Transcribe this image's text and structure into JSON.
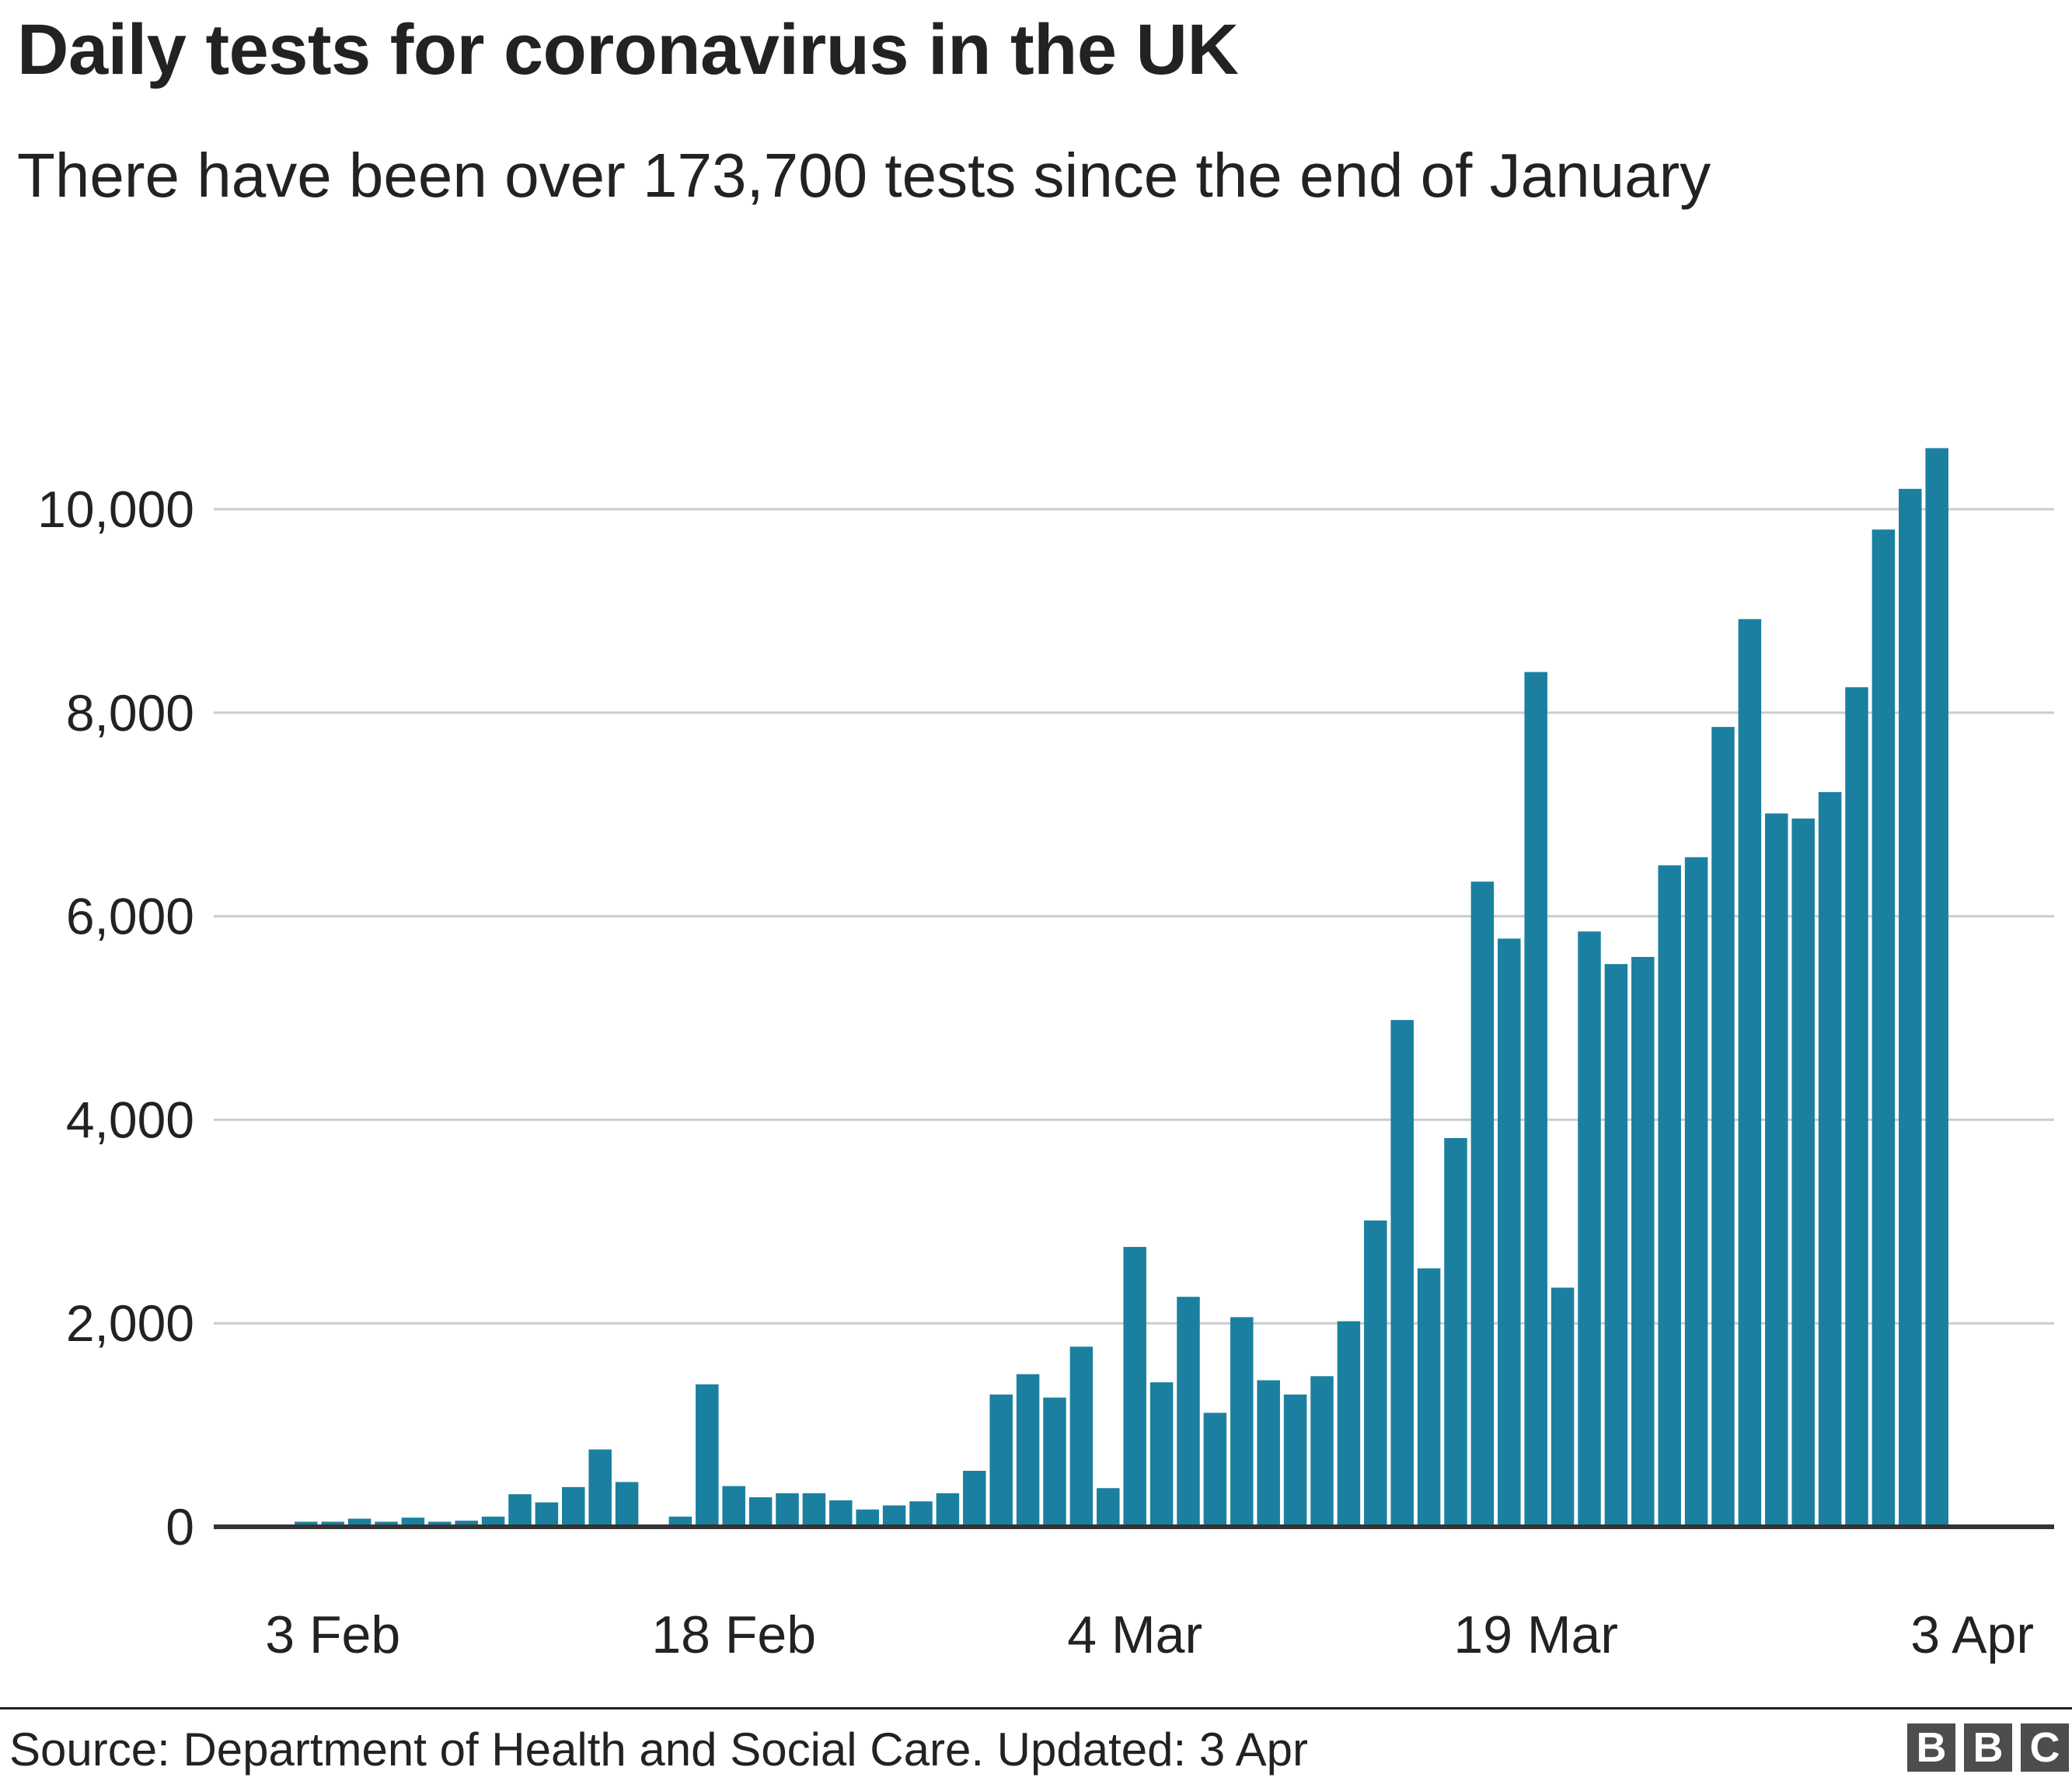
{
  "header": {
    "title": "Daily tests for coronavirus in the UK",
    "subtitle": "There have been over 173,700 tests since the end of January"
  },
  "footer": {
    "source": "Source: Department of Health and Social Care. Updated: 3 Apr",
    "logo_letters": [
      "B",
      "B",
      "C"
    ]
  },
  "colors": {
    "bar": "#1b80a0",
    "grid": "#cccccc",
    "baseline": "#333333",
    "text": "#222222",
    "logo_block": "#4d4d4d"
  },
  "chart_data": {
    "type": "bar",
    "title": "Daily tests for coronavirus in the UK",
    "subtitle": "There have been over 173,700 tests since the end of January",
    "xlabel": "",
    "ylabel": "",
    "ylim": [
      0,
      11000
    ],
    "y_ticks": [
      0,
      2000,
      4000,
      6000,
      8000,
      10000
    ],
    "y_tick_labels": [
      "0",
      "2,000",
      "4,000",
      "6,000",
      "8,000",
      "10,000"
    ],
    "x_tick_labels": [
      "3 Feb",
      "18 Feb",
      "4 Mar",
      "19 Mar",
      "3 Apr"
    ],
    "x_tick_days": [
      3,
      18,
      33,
      48,
      63
    ],
    "grid": true,
    "legend": "none",
    "days": [
      -1,
      0,
      1,
      2,
      3,
      4,
      5,
      6,
      7,
      8,
      9,
      10,
      11,
      12,
      13,
      14,
      15,
      16,
      17,
      18,
      19,
      20,
      21,
      22,
      23,
      24,
      25,
      26,
      27,
      28,
      29,
      30,
      31,
      32,
      33,
      34,
      35,
      36,
      37,
      38,
      39,
      40,
      41,
      42,
      43,
      44,
      45,
      46,
      47,
      48,
      49,
      50,
      51,
      52,
      53,
      54,
      55,
      56,
      57,
      58,
      59,
      60,
      61,
      62,
      63,
      64,
      65
    ],
    "values": [
      0,
      0,
      0,
      50,
      50,
      80,
      50,
      90,
      50,
      60,
      100,
      320,
      240,
      390,
      760,
      440,
      0,
      100,
      1400,
      400,
      290,
      330,
      330,
      260,
      170,
      210,
      250,
      330,
      550,
      1300,
      1500,
      1270,
      1770,
      380,
      2750,
      1420,
      2260,
      1120,
      2060,
      1440,
      1300,
      1480,
      2020,
      3010,
      4980,
      2540,
      3820,
      6340,
      5780,
      8400,
      2350,
      5850,
      5530,
      5600,
      6500,
      6580,
      7860,
      8920,
      7010,
      6960,
      7220,
      8250,
      9800,
      10200,
      10600,
      0,
      0
    ]
  }
}
